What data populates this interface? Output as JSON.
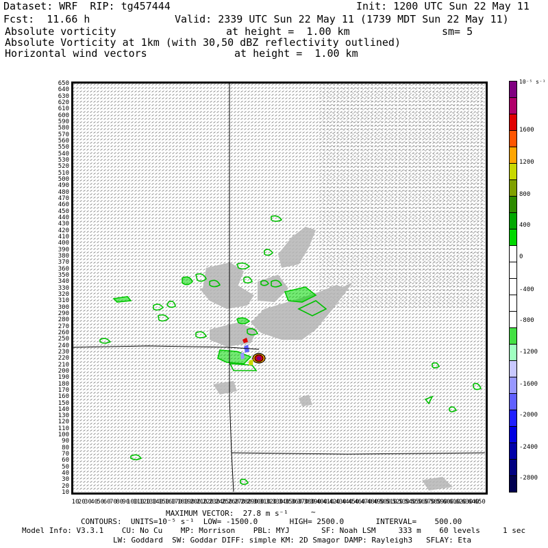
{
  "header": {
    "dataset_line": "Dataset: WRF  RIP: tg457444",
    "init_line": "Init: 1200 UTC Sun 22 May 11",
    "fcst_line": "Fcst:  11.66 h",
    "valid_line": "Valid: 2339 UTC Sun 22 May 11 (1739 MDT Sun 22 May 11)",
    "field1_name": "Absolute vorticity",
    "field1_height": "at height =  1.00 km",
    "field1_smooth": "sm= 5",
    "field2_name": "Absolute Vorticity at 1km (with 30,50 dBZ reflectivity outlined)",
    "field3_name": "Horizontal wind vectors",
    "field3_height": "at height =  1.00 km"
  },
  "y_axis_ticks": [
    "650",
    "640",
    "630",
    "620",
    "610",
    "600",
    "590",
    "580",
    "570",
    "560",
    "550",
    "540",
    "530",
    "520",
    "510",
    "500",
    "490",
    "480",
    "470",
    "460",
    "450",
    "440",
    "430",
    "420",
    "410",
    "400",
    "390",
    "380",
    "370",
    "360",
    "350",
    "340",
    "330",
    "320",
    "310",
    "300",
    "290",
    "280",
    "270",
    "260",
    "250",
    "240",
    "230",
    "220",
    "210",
    "200",
    "190",
    "180",
    "170",
    "160",
    "150",
    "140",
    "130",
    "120",
    "110",
    "100",
    "90",
    "80",
    "70",
    "60",
    "50",
    "40",
    "30",
    "20",
    "10"
  ],
  "x_axis_ticks": [
    "10",
    "20",
    "30",
    "40",
    "50",
    "60",
    "70",
    "80",
    "90",
    "100",
    "110",
    "120",
    "130",
    "140",
    "150",
    "160",
    "170",
    "180",
    "190",
    "200",
    "210",
    "220",
    "230",
    "240",
    "250",
    "260",
    "270",
    "280",
    "290",
    "300",
    "310",
    "320",
    "330",
    "340",
    "350",
    "360",
    "370",
    "380",
    "390",
    "400",
    "410",
    "420",
    "430",
    "440",
    "450",
    "460",
    "470",
    "480",
    "490",
    "500",
    "510",
    "520",
    "530",
    "540",
    "550",
    "560",
    "570",
    "580",
    "590",
    "600",
    "610",
    "620",
    "630",
    "640",
    "650"
  ],
  "colorbar": {
    "units": "10⁻⁵ s⁻¹",
    "labels": [
      "1600",
      "1200",
      "800",
      "400",
      "0",
      "-400",
      "-800",
      "-1200",
      "-1600",
      "-2000",
      "-2400",
      "-2800"
    ],
    "colors": [
      "#800080",
      "#b0006a",
      "#e00000",
      "#ff5500",
      "#ffa500",
      "#c8d800",
      "#7fa000",
      "#2d8b00",
      "#00a800",
      "#00d800",
      "#ffffff",
      "#ffffff",
      "#ffffff",
      "#ffffff",
      "#ffffff",
      "#44e044",
      "#a0ffc0",
      "#c8c8ff",
      "#9898ff",
      "#6060ff",
      "#2020ff",
      "#0000e0",
      "#0000a8",
      "#000080",
      "#000050"
    ]
  },
  "footer": {
    "max_vector": "MAXIMUM VECTOR:  27.8 m s⁻¹",
    "contours_line": "CONTOURS:  UNITS=10⁻⁵ s⁻¹  LOW= -1500.0       HIGH= 2500.0       INTERVAL=    500.00",
    "model_info_line": "Model Info: V3.3.1    CU: No Cu    MP: Morrison    PBL: MYJ       SF: Noah LSM     333 m    60 levels     1 sec",
    "physics_line": "LW: Goddard  SW: Goddar DIFF: simple KM: 2D Smagor DAMP: Rayleigh3   SFLAY: Eta"
  }
}
